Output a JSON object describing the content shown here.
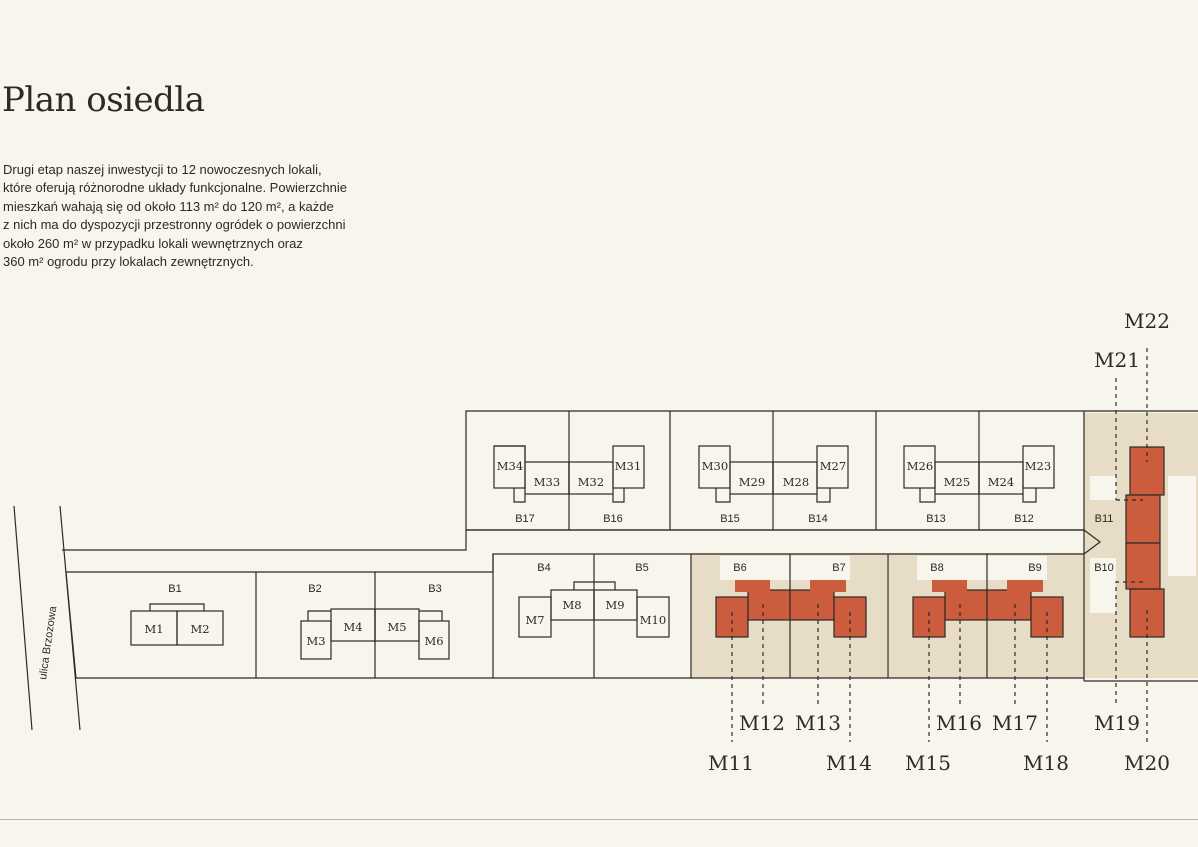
{
  "page": {
    "title": "Plan osiedla",
    "description": "Drugi etap naszej inwestycji to 12 nowoczesnych lokali,\nktóre oferują różnorodne układy funkcjonalne. Powierzchnie\nmieszkań wahają się od około 113 m² do 120 m², a każde\nz nich ma do dyspozycji przestronny ogródek o powierzchni\nokoło 260 m² w przypadku lokali wewnętrznych oraz\n360 m² ogrodu przy lokalach zewnętrznych."
  },
  "colors": {
    "background": "#f8f5ec",
    "line": "#2b2a26",
    "highlight_fill": "#cc5c3e",
    "highlight_area": "#e7dcc6"
  },
  "street": {
    "label": "ulica Brzozowa"
  },
  "plots": [
    {
      "id": "b1",
      "label": "B1"
    },
    {
      "id": "b2",
      "label": "B2"
    },
    {
      "id": "b3",
      "label": "B3"
    },
    {
      "id": "b4",
      "label": "B4"
    },
    {
      "id": "b5",
      "label": "B5"
    },
    {
      "id": "b6",
      "label": "B6"
    },
    {
      "id": "b7",
      "label": "B7"
    },
    {
      "id": "b8",
      "label": "B8"
    },
    {
      "id": "b9",
      "label": "B9"
    },
    {
      "id": "b10",
      "label": "B10"
    },
    {
      "id": "b11",
      "label": "B11"
    },
    {
      "id": "b12",
      "label": "B12"
    },
    {
      "id": "b13",
      "label": "B13"
    },
    {
      "id": "b14",
      "label": "B14"
    },
    {
      "id": "b15",
      "label": "B15"
    },
    {
      "id": "b16",
      "label": "B16"
    },
    {
      "id": "b17",
      "label": "B17"
    }
  ],
  "units_outline": [
    {
      "id": "m1",
      "label": "M1"
    },
    {
      "id": "m2",
      "label": "M2"
    },
    {
      "id": "m3",
      "label": "M3"
    },
    {
      "id": "m4",
      "label": "M4"
    },
    {
      "id": "m5",
      "label": "M5"
    },
    {
      "id": "m6",
      "label": "M6"
    },
    {
      "id": "m7",
      "label": "M7"
    },
    {
      "id": "m8",
      "label": "M8"
    },
    {
      "id": "m9",
      "label": "M9"
    },
    {
      "id": "m10",
      "label": "M10"
    },
    {
      "id": "m23",
      "label": "M23"
    },
    {
      "id": "m24",
      "label": "M24"
    },
    {
      "id": "m25",
      "label": "M25"
    },
    {
      "id": "m26",
      "label": "M26"
    },
    {
      "id": "m27",
      "label": "M27"
    },
    {
      "id": "m28",
      "label": "M28"
    },
    {
      "id": "m29",
      "label": "M29"
    },
    {
      "id": "m30",
      "label": "M30"
    },
    {
      "id": "m31",
      "label": "M31"
    },
    {
      "id": "m32",
      "label": "M32"
    },
    {
      "id": "m33",
      "label": "M33"
    },
    {
      "id": "m34",
      "label": "M34"
    }
  ],
  "units_highlighted": [
    {
      "id": "m11",
      "label": "M11"
    },
    {
      "id": "m12",
      "label": "M12"
    },
    {
      "id": "m13",
      "label": "M13"
    },
    {
      "id": "m14",
      "label": "M14"
    },
    {
      "id": "m15",
      "label": "M15"
    },
    {
      "id": "m16",
      "label": "M16"
    },
    {
      "id": "m17",
      "label": "M17"
    },
    {
      "id": "m18",
      "label": "M18"
    },
    {
      "id": "m19",
      "label": "M19"
    },
    {
      "id": "m20",
      "label": "M20"
    },
    {
      "id": "m21",
      "label": "M21"
    },
    {
      "id": "m22",
      "label": "M22"
    }
  ]
}
